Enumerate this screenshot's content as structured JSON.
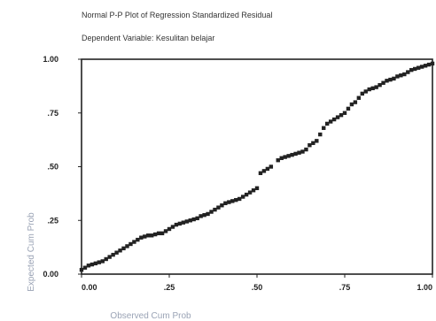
{
  "chart_data": {
    "type": "scatter",
    "title": "Normal P-P Plot of Regression Standardized Residual",
    "subtitle": "Dependent Variable: Kesulitan belajar",
    "xlabel": "Observed Cum Prob",
    "ylabel": "Expected Cum Prob",
    "xlim": [
      0,
      1
    ],
    "ylim": [
      0,
      1
    ],
    "x_ticks": [
      "0.00",
      ".25",
      ".50",
      ".75",
      "1.00"
    ],
    "y_ticks": [
      "0.00",
      ".25",
      ".50",
      ".75",
      "1.00"
    ],
    "grid": false,
    "marker_color": "#222222",
    "points": [
      [
        0.0,
        0.02
      ],
      [
        0.01,
        0.03
      ],
      [
        0.02,
        0.04
      ],
      [
        0.03,
        0.045
      ],
      [
        0.04,
        0.05
      ],
      [
        0.05,
        0.055
      ],
      [
        0.06,
        0.06
      ],
      [
        0.07,
        0.07
      ],
      [
        0.08,
        0.08
      ],
      [
        0.09,
        0.09
      ],
      [
        0.1,
        0.1
      ],
      [
        0.11,
        0.11
      ],
      [
        0.12,
        0.12
      ],
      [
        0.13,
        0.13
      ],
      [
        0.14,
        0.14
      ],
      [
        0.15,
        0.15
      ],
      [
        0.16,
        0.16
      ],
      [
        0.17,
        0.17
      ],
      [
        0.18,
        0.175
      ],
      [
        0.19,
        0.18
      ],
      [
        0.2,
        0.18
      ],
      [
        0.21,
        0.185
      ],
      [
        0.22,
        0.19
      ],
      [
        0.23,
        0.19
      ],
      [
        0.24,
        0.2
      ],
      [
        0.25,
        0.21
      ],
      [
        0.26,
        0.22
      ],
      [
        0.27,
        0.23
      ],
      [
        0.28,
        0.235
      ],
      [
        0.29,
        0.24
      ],
      [
        0.3,
        0.245
      ],
      [
        0.31,
        0.25
      ],
      [
        0.32,
        0.255
      ],
      [
        0.33,
        0.26
      ],
      [
        0.34,
        0.27
      ],
      [
        0.35,
        0.275
      ],
      [
        0.36,
        0.28
      ],
      [
        0.37,
        0.29
      ],
      [
        0.38,
        0.3
      ],
      [
        0.39,
        0.31
      ],
      [
        0.4,
        0.32
      ],
      [
        0.41,
        0.33
      ],
      [
        0.42,
        0.335
      ],
      [
        0.43,
        0.34
      ],
      [
        0.44,
        0.345
      ],
      [
        0.45,
        0.35
      ],
      [
        0.46,
        0.36
      ],
      [
        0.47,
        0.37
      ],
      [
        0.48,
        0.38
      ],
      [
        0.49,
        0.39
      ],
      [
        0.5,
        0.4
      ],
      [
        0.51,
        0.47
      ],
      [
        0.52,
        0.48
      ],
      [
        0.53,
        0.49
      ],
      [
        0.54,
        0.5
      ],
      [
        0.56,
        0.53
      ],
      [
        0.57,
        0.54
      ],
      [
        0.58,
        0.545
      ],
      [
        0.59,
        0.55
      ],
      [
        0.6,
        0.555
      ],
      [
        0.61,
        0.56
      ],
      [
        0.62,
        0.565
      ],
      [
        0.63,
        0.57
      ],
      [
        0.64,
        0.58
      ],
      [
        0.65,
        0.6
      ],
      [
        0.66,
        0.61
      ],
      [
        0.67,
        0.62
      ],
      [
        0.68,
        0.65
      ],
      [
        0.69,
        0.68
      ],
      [
        0.7,
        0.7
      ],
      [
        0.71,
        0.71
      ],
      [
        0.72,
        0.72
      ],
      [
        0.73,
        0.73
      ],
      [
        0.74,
        0.74
      ],
      [
        0.75,
        0.75
      ],
      [
        0.76,
        0.77
      ],
      [
        0.77,
        0.79
      ],
      [
        0.78,
        0.8
      ],
      [
        0.79,
        0.82
      ],
      [
        0.8,
        0.84
      ],
      [
        0.81,
        0.85
      ],
      [
        0.82,
        0.86
      ],
      [
        0.83,
        0.865
      ],
      [
        0.84,
        0.87
      ],
      [
        0.85,
        0.88
      ],
      [
        0.86,
        0.89
      ],
      [
        0.87,
        0.9
      ],
      [
        0.88,
        0.905
      ],
      [
        0.89,
        0.91
      ],
      [
        0.9,
        0.92
      ],
      [
        0.91,
        0.925
      ],
      [
        0.92,
        0.93
      ],
      [
        0.93,
        0.94
      ],
      [
        0.94,
        0.95
      ],
      [
        0.95,
        0.955
      ],
      [
        0.96,
        0.96
      ],
      [
        0.97,
        0.965
      ],
      [
        0.98,
        0.97
      ],
      [
        0.99,
        0.975
      ],
      [
        1.0,
        0.98
      ]
    ]
  }
}
